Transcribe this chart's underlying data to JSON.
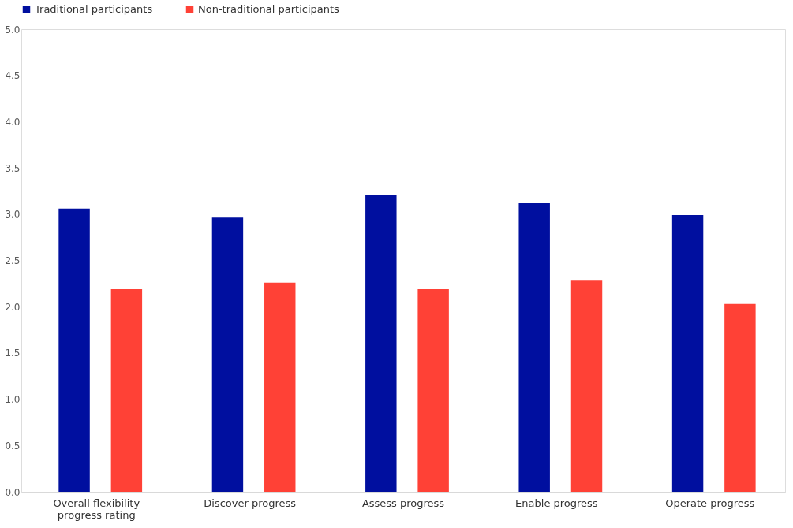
{
  "chart_data": {
    "type": "bar",
    "categories": [
      "Overall flexibility progress rating",
      "Discover progress",
      "Assess progress",
      "Enable progress",
      "Operate progress"
    ],
    "series": [
      {
        "name": "Traditional participants",
        "color": "#000f9f",
        "values": [
          3.06,
          2.97,
          3.21,
          3.12,
          2.99
        ]
      },
      {
        "name": "Non-traditional participants",
        "color": "#ff4136",
        "values": [
          2.19,
          2.26,
          2.19,
          2.29,
          2.03
        ]
      }
    ],
    "ylim": [
      0,
      5
    ],
    "yticks": [
      {
        "value": 0,
        "label": "0.0"
      },
      {
        "value": 0.5,
        "label": "0.5"
      },
      {
        "value": 1,
        "label": "1.0"
      },
      {
        "value": 1.5,
        "label": "1.5"
      },
      {
        "value": 2,
        "label": "2.0"
      },
      {
        "value": 2.5,
        "label": "2.5"
      },
      {
        "value": 3,
        "label": "3.0"
      },
      {
        "value": 3.5,
        "label": "3.5"
      },
      {
        "value": 4,
        "label": "4.0"
      },
      {
        "value": 4.5,
        "label": "4.5"
      },
      {
        "value": 5,
        "label": "5.0"
      }
    ],
    "grid": false,
    "legend": "top"
  }
}
